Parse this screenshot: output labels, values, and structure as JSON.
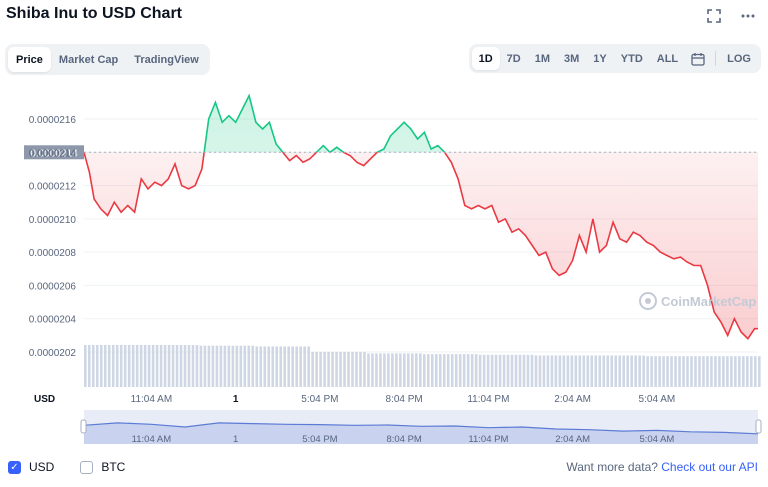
{
  "title": "Shiba Inu to USD Chart",
  "icons": {
    "expand": "expand-icon",
    "more": "more-horizontal-icon",
    "calendar": "calendar-icon"
  },
  "view_tabs": [
    {
      "label": "Price",
      "active": true
    },
    {
      "label": "Market Cap",
      "active": false
    },
    {
      "label": "TradingView",
      "active": false
    }
  ],
  "range_tabs": [
    {
      "label": "1D",
      "active": true
    },
    {
      "label": "7D",
      "active": false
    },
    {
      "label": "1M",
      "active": false
    },
    {
      "label": "3M",
      "active": false
    },
    {
      "label": "1Y",
      "active": false
    },
    {
      "label": "YTD",
      "active": false
    },
    {
      "label": "ALL",
      "active": false
    }
  ],
  "log_label": "LOG",
  "watermark": "CoinMarketCap",
  "currency_axis_label": "USD",
  "current_price_label": "0.0000214",
  "legend": [
    {
      "label": "USD",
      "checked": true
    },
    {
      "label": "BTC",
      "checked": false
    }
  ],
  "more_data": {
    "text": "Want more data? ",
    "link": "Check out our API"
  },
  "colors": {
    "up": "#16c784",
    "down": "#ea3943",
    "accent": "#3861fb",
    "volume": "#cfd6e4",
    "navigator": "#5b7bd5"
  },
  "chart_data": {
    "type": "line",
    "reference_price": 2.14e-05,
    "ylim": [
      2.01e-05,
      2.18e-06
    ],
    "y_ticks": [
      "0.0000216",
      "0.0000214",
      "0.0000212",
      "0.0000210",
      "0.0000208",
      "0.0000206",
      "0.0000204",
      "0.0000202"
    ],
    "y_tick_values": [
      2.16e-05,
      2.14e-05,
      2.12e-05,
      2.1e-05,
      2.08e-05,
      2.06e-05,
      2.04e-05,
      2.02e-05
    ],
    "x_ticks": [
      "11:04 AM",
      "1",
      "5:04 PM",
      "8:04 PM",
      "11:04 PM",
      "2:04 AM",
      "5:04 AM"
    ],
    "x_tick_positions": [
      0.1,
      0.225,
      0.35,
      0.475,
      0.6,
      0.725,
      0.85
    ],
    "price_series": [
      [
        0.0,
        2.14e-05
      ],
      [
        0.008,
        2.128e-05
      ],
      [
        0.015,
        2.112e-05
      ],
      [
        0.025,
        2.106e-05
      ],
      [
        0.035,
        2.102e-05
      ],
      [
        0.045,
        2.11e-05
      ],
      [
        0.055,
        2.104e-05
      ],
      [
        0.065,
        2.108e-05
      ],
      [
        0.075,
        2.104e-05
      ],
      [
        0.085,
        2.124e-05
      ],
      [
        0.095,
        2.118e-05
      ],
      [
        0.105,
        2.122e-05
      ],
      [
        0.115,
        2.12e-05
      ],
      [
        0.125,
        2.124e-05
      ],
      [
        0.135,
        2.133e-05
      ],
      [
        0.145,
        2.12e-05
      ],
      [
        0.155,
        2.118e-05
      ],
      [
        0.165,
        2.12e-05
      ],
      [
        0.175,
        2.13e-05
      ],
      [
        0.185,
        2.16e-05
      ],
      [
        0.195,
        2.17e-05
      ],
      [
        0.205,
        2.158e-05
      ],
      [
        0.215,
        2.162e-05
      ],
      [
        0.225,
        2.158e-05
      ],
      [
        0.235,
        2.166e-05
      ],
      [
        0.245,
        2.174e-05
      ],
      [
        0.255,
        2.158e-05
      ],
      [
        0.265,
        2.154e-05
      ],
      [
        0.275,
        2.158e-05
      ],
      [
        0.285,
        2.145e-05
      ],
      [
        0.295,
        2.14e-05
      ],
      [
        0.305,
        2.135e-05
      ],
      [
        0.315,
        2.138e-05
      ],
      [
        0.325,
        2.134e-05
      ],
      [
        0.335,
        2.136e-05
      ],
      [
        0.345,
        2.14e-05
      ],
      [
        0.355,
        2.144e-05
      ],
      [
        0.365,
        2.14e-05
      ],
      [
        0.375,
        2.143e-05
      ],
      [
        0.385,
        2.14e-05
      ],
      [
        0.395,
        2.138e-05
      ],
      [
        0.405,
        2.134e-05
      ],
      [
        0.415,
        2.132e-05
      ],
      [
        0.425,
        2.136e-05
      ],
      [
        0.435,
        2.14e-05
      ],
      [
        0.445,
        2.142e-05
      ],
      [
        0.455,
        2.15e-05
      ],
      [
        0.465,
        2.154e-05
      ],
      [
        0.475,
        2.158e-05
      ],
      [
        0.485,
        2.154e-05
      ],
      [
        0.495,
        2.148e-05
      ],
      [
        0.505,
        2.152e-05
      ],
      [
        0.515,
        2.142e-05
      ],
      [
        0.525,
        2.144e-05
      ],
      [
        0.535,
        2.14e-05
      ],
      [
        0.545,
        2.134e-05
      ],
      [
        0.555,
        2.124e-05
      ],
      [
        0.565,
        2.108e-05
      ],
      [
        0.575,
        2.106e-05
      ],
      [
        0.585,
        2.108e-05
      ],
      [
        0.595,
        2.106e-05
      ],
      [
        0.605,
        2.108e-05
      ],
      [
        0.615,
        2.098e-05
      ],
      [
        0.625,
        2.1e-05
      ],
      [
        0.635,
        2.092e-05
      ],
      [
        0.645,
        2.094e-05
      ],
      [
        0.655,
        2.09e-05
      ],
      [
        0.665,
        2.084e-05
      ],
      [
        0.675,
        2.078e-05
      ],
      [
        0.685,
        2.08e-05
      ],
      [
        0.695,
        2.07e-05
      ],
      [
        0.705,
        2.066e-05
      ],
      [
        0.715,
        2.068e-05
      ],
      [
        0.725,
        2.075e-05
      ],
      [
        0.735,
        2.09e-05
      ],
      [
        0.745,
        2.08e-05
      ],
      [
        0.755,
        2.1e-05
      ],
      [
        0.765,
        2.08e-05
      ],
      [
        0.775,
        2.084e-05
      ],
      [
        0.785,
        2.098e-05
      ],
      [
        0.795,
        2.088e-05
      ],
      [
        0.805,
        2.086e-05
      ],
      [
        0.815,
        2.092e-05
      ],
      [
        0.825,
        2.09e-05
      ],
      [
        0.835,
        2.086e-05
      ],
      [
        0.845,
        2.084e-05
      ],
      [
        0.855,
        2.08e-05
      ],
      [
        0.865,
        2.078e-05
      ],
      [
        0.875,
        2.076e-05
      ],
      [
        0.885,
        2.077e-05
      ],
      [
        0.895,
        2.074e-05
      ],
      [
        0.905,
        2.072e-05
      ],
      [
        0.915,
        2.072e-05
      ],
      [
        0.925,
        2.06e-05
      ],
      [
        0.935,
        2.044e-05
      ],
      [
        0.945,
        2.038e-05
      ],
      [
        0.955,
        2.03e-05
      ],
      [
        0.965,
        2.04e-05
      ],
      [
        0.975,
        2.032e-05
      ],
      [
        0.985,
        2.028e-05
      ],
      [
        0.995,
        2.034e-05
      ],
      [
        1.0,
        2.034e-05
      ]
    ],
    "volume_levels": [
      0.6,
      0.6,
      0.59,
      0.58,
      0.5,
      0.48,
      0.47,
      0.46,
      0.45,
      0.45,
      0.44,
      0.44
    ],
    "navigator_levels": [
      0.55,
      0.62,
      0.58,
      0.5,
      0.62,
      0.6,
      0.58,
      0.57,
      0.55,
      0.56,
      0.52,
      0.53,
      0.48,
      0.5,
      0.44,
      0.42,
      0.38,
      0.4,
      0.36,
      0.34,
      0.3
    ]
  }
}
